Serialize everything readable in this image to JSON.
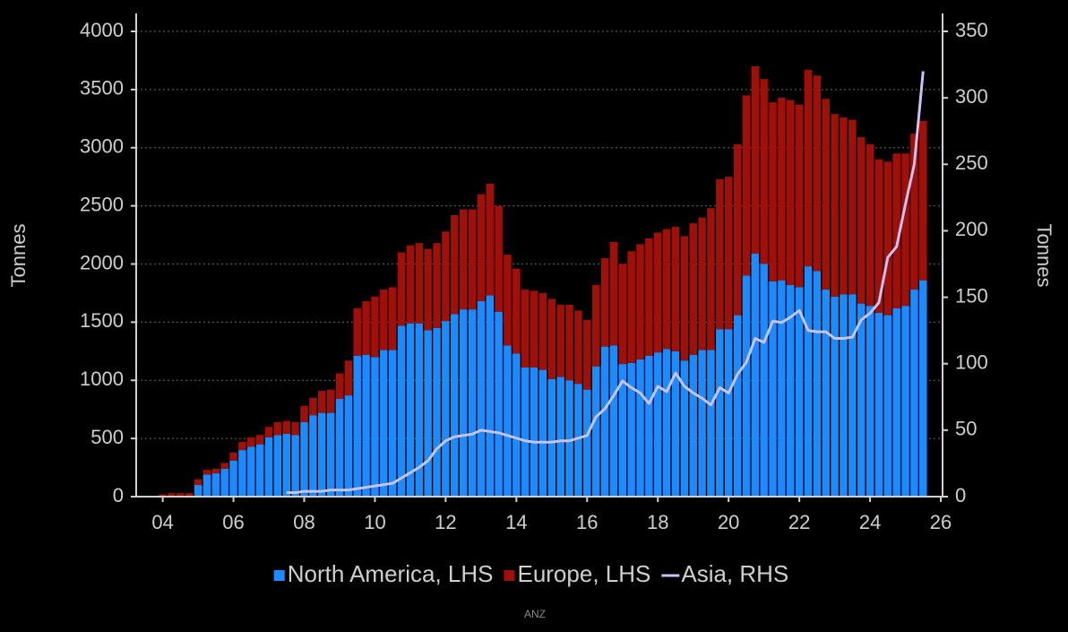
{
  "chart_data": {
    "type": "bar",
    "stacked": true,
    "ylabel": "Tonnes",
    "y2label": "Tonnes",
    "source": "ANZ",
    "x": [
      2004,
      2004.25,
      2004.5,
      2004.75,
      2005,
      2005.25,
      2005.5,
      2005.75,
      2006,
      2006.25,
      2006.5,
      2006.75,
      2007,
      2007.25,
      2007.5,
      2007.75,
      2008,
      2008.25,
      2008.5,
      2008.75,
      2009,
      2009.25,
      2009.5,
      2009.75,
      2010,
      2010.25,
      2010.5,
      2010.75,
      2011,
      2011.25,
      2011.5,
      2011.75,
      2012,
      2012.25,
      2012.5,
      2012.75,
      2013,
      2013.25,
      2013.5,
      2013.75,
      2014,
      2014.25,
      2014.5,
      2014.75,
      2015,
      2015.25,
      2015.5,
      2015.75,
      2016,
      2016.25,
      2016.5,
      2016.75,
      2017,
      2017.25,
      2017.5,
      2017.75,
      2018,
      2018.25,
      2018.5,
      2018.75,
      2019,
      2019.25,
      2019.5,
      2019.75,
      2020,
      2020.25,
      2020.5,
      2020.75,
      2021,
      2021.25,
      2021.5,
      2021.75,
      2022,
      2022.25,
      2022.5,
      2022.75,
      2023,
      2023.25,
      2023.5,
      2023.75,
      2024,
      2024.25,
      2024.5,
      2024.75,
      2025,
      2025.25,
      2025.5
    ],
    "series": [
      {
        "name": "North America, LHS",
        "type": "bar",
        "color": "#1a8cff",
        "values": [
          0,
          0,
          0,
          0,
          100,
          190,
          200,
          240,
          310,
          400,
          430,
          450,
          510,
          530,
          540,
          530,
          640,
          700,
          720,
          720,
          840,
          870,
          1210,
          1220,
          1200,
          1260,
          1260,
          1470,
          1490,
          1490,
          1430,
          1450,
          1510,
          1570,
          1610,
          1610,
          1680,
          1730,
          1590,
          1300,
          1230,
          1110,
          1110,
          1090,
          1010,
          1030,
          1000,
          970,
          920,
          1120,
          1290,
          1300,
          1140,
          1150,
          1180,
          1210,
          1240,
          1270,
          1250,
          1170,
          1220,
          1260,
          1260,
          1440,
          1440,
          1560,
          1900,
          2090,
          2000,
          1850,
          1860,
          1820,
          1800,
          1980,
          1940,
          1780,
          1720,
          1740,
          1740,
          1660,
          1640,
          1580,
          1560,
          1620,
          1640,
          1780,
          1860
        ]
      },
      {
        "name": "Europe, LHS",
        "type": "bar",
        "color": "#a00f08",
        "values": [
          20,
          30,
          30,
          30,
          50,
          40,
          40,
          50,
          70,
          70,
          80,
          80,
          90,
          110,
          110,
          110,
          140,
          150,
          190,
          200,
          220,
          300,
          410,
          460,
          520,
          520,
          540,
          630,
          670,
          690,
          700,
          730,
          770,
          850,
          860,
          860,
          920,
          960,
          910,
          780,
          730,
          670,
          660,
          660,
          690,
          620,
          650,
          630,
          600,
          700,
          760,
          890,
          860,
          960,
          990,
          1010,
          1030,
          1030,
          1070,
          1070,
          1130,
          1140,
          1220,
          1290,
          1310,
          1470,
          1550,
          1610,
          1590,
          1540,
          1570,
          1590,
          1570,
          1690,
          1680,
          1640,
          1570,
          1520,
          1500,
          1430,
          1390,
          1320,
          1320,
          1330,
          1310,
          1340,
          1370
        ]
      },
      {
        "name": "Asia, RHS",
        "type": "line",
        "axis": "y2",
        "color": "#c9c2f2",
        "values": [
          null,
          null,
          null,
          null,
          null,
          null,
          null,
          null,
          null,
          null,
          null,
          null,
          null,
          null,
          3,
          3,
          4,
          4,
          4,
          5,
          5,
          5,
          6,
          7,
          8,
          9,
          10,
          14,
          18,
          22,
          27,
          36,
          42,
          45,
          46,
          47,
          50,
          49,
          48,
          46,
          44,
          42,
          41,
          41,
          41,
          42,
          42,
          44,
          46,
          60,
          66,
          76,
          87,
          82,
          78,
          70,
          83,
          79,
          93,
          83,
          78,
          74,
          69,
          82,
          78,
          92,
          101,
          119,
          116,
          132,
          131,
          135,
          140,
          125,
          124,
          124,
          119,
          119,
          120,
          133,
          138,
          146,
          180,
          188,
          220,
          250,
          320
        ]
      }
    ],
    "xlim": [
      2003.25,
      2026.05
    ],
    "xticks": [
      {
        "value": 2004,
        "label": "04"
      },
      {
        "value": 2006,
        "label": "06"
      },
      {
        "value": 2008,
        "label": "08"
      },
      {
        "value": 2010,
        "label": "10"
      },
      {
        "value": 2012,
        "label": "12"
      },
      {
        "value": 2014,
        "label": "14"
      },
      {
        "value": 2016,
        "label": "16"
      },
      {
        "value": 2018,
        "label": "18"
      },
      {
        "value": 2020,
        "label": "20"
      },
      {
        "value": 2022,
        "label": "22"
      },
      {
        "value": 2024,
        "label": "24"
      },
      {
        "value": 2026,
        "label": "26"
      }
    ],
    "ylim": [
      0,
      4000
    ],
    "yticks": [
      0,
      500,
      1000,
      1500,
      2000,
      2500,
      3000,
      3500,
      4000
    ],
    "y2lim": [
      0,
      350
    ],
    "y2ticks": [
      0,
      50,
      100,
      150,
      200,
      250,
      300,
      350
    ],
    "grid": true,
    "legend": "bottom"
  }
}
